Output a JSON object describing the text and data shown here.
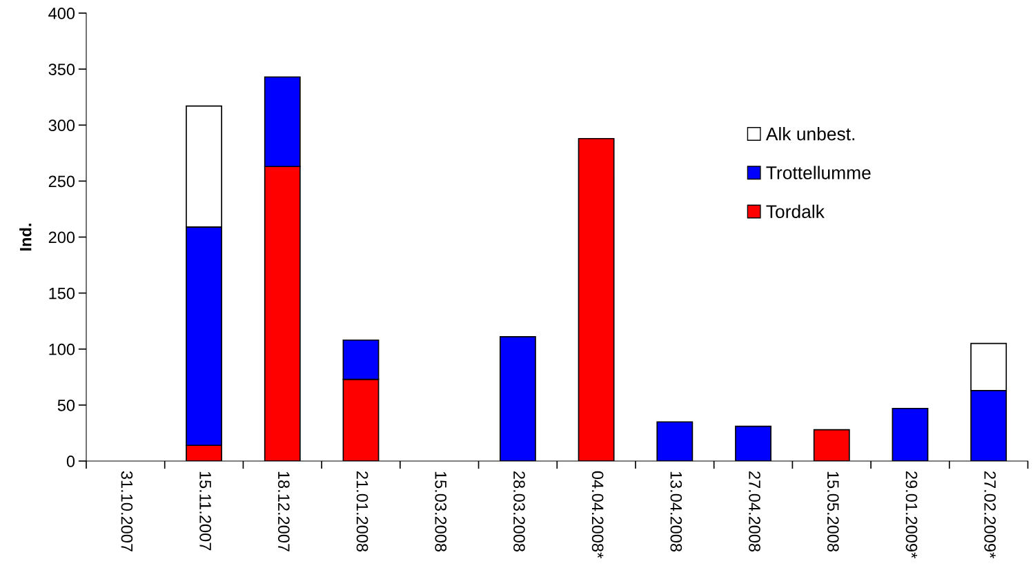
{
  "chart_data": {
    "type": "bar",
    "stacked": true,
    "ylabel": "Ind.",
    "categories": [
      "31.10.2007",
      "15.11.2007",
      "18.12.2007",
      "21.01.2008",
      "15.03.2008",
      "28.03.2008",
      "04.04.2008*",
      "13.04.2008",
      "27.04.2008",
      "15.05.2008",
      "29.01.2009*",
      "27.02.2009*"
    ],
    "series": [
      {
        "name": "Tordalk",
        "color": "#ff0000",
        "values": [
          null,
          14,
          263,
          73,
          null,
          null,
          288,
          null,
          null,
          28,
          null,
          null
        ]
      },
      {
        "name": "Trottellumme",
        "color": "#0000ff",
        "values": [
          null,
          195,
          80,
          35,
          null,
          111,
          null,
          35,
          31,
          null,
          47,
          63
        ]
      },
      {
        "name": "Alk unbest.",
        "color": "#ffffff",
        "values": [
          null,
          108,
          null,
          null,
          null,
          null,
          null,
          null,
          null,
          null,
          null,
          42
        ]
      }
    ],
    "ylim": [
      0,
      400
    ],
    "yticks": [
      0,
      50,
      100,
      150,
      200,
      250,
      300,
      350,
      400
    ],
    "legend": "right"
  }
}
